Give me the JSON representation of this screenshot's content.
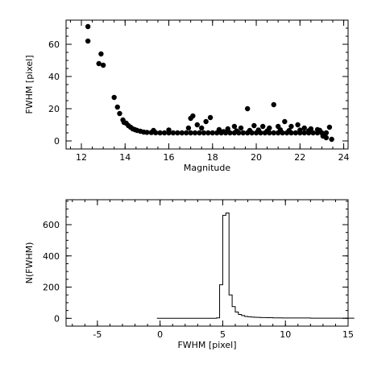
{
  "chart_data": [
    {
      "type": "scatter",
      "xlabel": "Magnitude",
      "ylabel": "FWHM [pixel]",
      "xlim": [
        11.3,
        24.2
      ],
      "ylim": [
        -5,
        75
      ],
      "x_ticks": [
        12,
        14,
        16,
        18,
        20,
        22,
        24
      ],
      "y_ticks": [
        0,
        20,
        40,
        60
      ],
      "grid": false,
      "series": [
        {
          "points": [
            [
              12.3,
              71
            ],
            [
              12.3,
              62
            ],
            [
              12.8,
              48
            ],
            [
              12.9,
              54
            ],
            [
              13.0,
              47
            ],
            [
              13.5,
              27
            ],
            [
              13.65,
              21
            ],
            [
              13.75,
              17
            ],
            [
              13.9,
              13
            ],
            [
              13.95,
              11.5
            ],
            [
              14.05,
              11
            ],
            [
              14.15,
              9.5
            ],
            [
              14.25,
              8.5
            ],
            [
              14.35,
              7.5
            ],
            [
              14.45,
              7
            ],
            [
              14.55,
              6.5
            ],
            [
              14.7,
              6
            ],
            [
              14.85,
              5.5
            ],
            [
              15.0,
              5.3
            ],
            [
              15.2,
              5.2
            ],
            [
              15.4,
              5.1
            ],
            [
              15.6,
              5.0
            ],
            [
              15.8,
              5.0
            ],
            [
              16.0,
              5.0
            ],
            [
              16.2,
              5.0
            ],
            [
              16.4,
              5.0
            ],
            [
              16.6,
              5.0
            ],
            [
              16.8,
              5.0
            ],
            [
              17.0,
              5.0
            ],
            [
              17.2,
              5.0
            ],
            [
              17.4,
              5.0
            ],
            [
              17.6,
              5.0
            ],
            [
              17.8,
              5.0
            ],
            [
              18.0,
              5.0
            ],
            [
              18.2,
              5.0
            ],
            [
              18.4,
              5.0
            ],
            [
              18.6,
              5.0
            ],
            [
              18.8,
              5.0
            ],
            [
              19.0,
              5.0
            ],
            [
              19.2,
              5.0
            ],
            [
              19.4,
              5.0
            ],
            [
              19.6,
              5.0
            ],
            [
              19.8,
              5.0
            ],
            [
              20.0,
              5.0
            ],
            [
              20.2,
              5.0
            ],
            [
              20.4,
              5.0
            ],
            [
              20.6,
              5.0
            ],
            [
              20.8,
              5.0
            ],
            [
              21.0,
              5.0
            ],
            [
              21.2,
              5.0
            ],
            [
              21.4,
              5.0
            ],
            [
              21.6,
              5.0
            ],
            [
              21.8,
              5.0
            ],
            [
              22.0,
              5.0
            ],
            [
              22.2,
              5.0
            ],
            [
              22.4,
              5.0
            ],
            [
              22.6,
              5.0
            ],
            [
              22.8,
              5.0
            ],
            [
              23.0,
              5.0
            ],
            [
              23.2,
              5.0
            ],
            [
              15.3,
              6.5
            ],
            [
              16.0,
              6.8
            ],
            [
              16.9,
              8
            ],
            [
              17.0,
              14
            ],
            [
              17.1,
              15.5
            ],
            [
              17.3,
              10
            ],
            [
              17.5,
              8
            ],
            [
              17.7,
              12
            ],
            [
              17.9,
              14.5
            ],
            [
              18.3,
              7
            ],
            [
              18.7,
              7.5
            ],
            [
              19.0,
              9
            ],
            [
              19.3,
              8
            ],
            [
              19.6,
              20
            ],
            [
              19.9,
              9.5
            ],
            [
              20.3,
              9
            ],
            [
              20.6,
              8
            ],
            [
              20.8,
              22.5
            ],
            [
              21.0,
              9
            ],
            [
              21.3,
              12
            ],
            [
              21.6,
              9
            ],
            [
              21.9,
              10
            ],
            [
              22.2,
              8
            ],
            [
              22.5,
              7.5
            ],
            [
              22.8,
              7
            ],
            [
              23.05,
              3
            ],
            [
              23.2,
              2
            ],
            [
              23.35,
              8.5
            ],
            [
              23.45,
              1
            ],
            [
              18.5,
              5.8
            ],
            [
              19.1,
              6.2
            ],
            [
              19.7,
              6.5
            ],
            [
              20.1,
              6.8
            ],
            [
              20.5,
              6.2
            ],
            [
              21.1,
              6.9
            ],
            [
              21.5,
              6.4
            ],
            [
              22.0,
              6.7
            ],
            [
              22.4,
              6.3
            ],
            [
              22.9,
              6.6
            ]
          ]
        }
      ]
    },
    {
      "type": "histogram",
      "xlabel": "FWHM [pixel]",
      "ylabel": "N(FWHM)",
      "xlim": [
        -7.5,
        15
      ],
      "ylim": [
        -50,
        760
      ],
      "x_ticks": [
        -5,
        0,
        5,
        10,
        15
      ],
      "y_ticks": [
        0,
        200,
        400,
        600
      ],
      "grid": false,
      "bin_width": 0.25,
      "bin_start": -0.25,
      "counts": [
        0,
        0,
        0,
        0,
        0,
        0,
        0,
        0,
        0,
        0,
        0,
        0,
        0,
        0,
        0,
        0,
        0,
        0,
        0,
        3,
        215,
        660,
        675,
        150,
        75,
        40,
        25,
        18,
        12,
        10,
        8,
        7,
        6,
        5,
        5,
        4,
        4,
        3,
        3,
        3,
        2,
        2,
        2,
        2,
        2,
        2,
        2,
        2,
        2,
        1,
        1,
        1,
        1,
        1,
        1,
        1,
        1,
        1,
        1,
        1,
        1,
        1,
        1
      ]
    }
  ]
}
